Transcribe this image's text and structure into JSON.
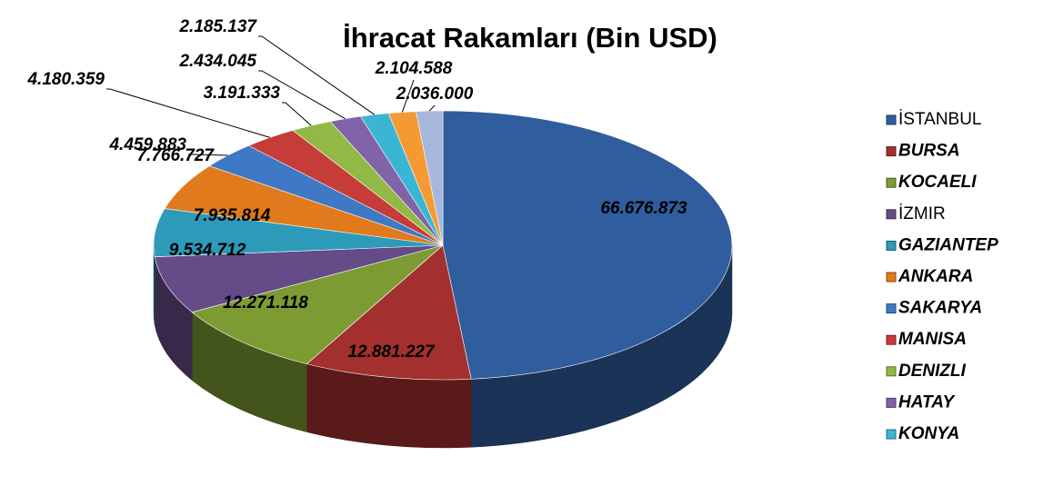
{
  "chart_data": {
    "type": "pie",
    "title": "İhracat Rakamları (Bin USD)",
    "categories": [
      "İSTANBUL",
      "BURSA",
      "KOCAELI",
      "İZMIR",
      "GAZIANTEP",
      "ANKARA",
      "SAKARYA",
      "MANISA",
      "DENIZLI",
      "HATAY",
      "KONYA",
      null,
      null
    ],
    "values": [
      66676873,
      12881227,
      12271118,
      9534712,
      7935814,
      7766727,
      4459883,
      4180359,
      3191333,
      2434045,
      2185137,
      2104588,
      2036000
    ],
    "value_labels": [
      "66.676.873",
      "12.881.227",
      "12.271.118",
      "9.534.712",
      "7.935.814",
      "7.766.727",
      "4.459.883",
      "4.180.359",
      "3.191.333",
      "2.434.045",
      "2.185.137",
      "2.104.588",
      "2.036.000"
    ],
    "colors": [
      "#2f5d9e",
      "#a3302e",
      "#7c9b33",
      "#654b87",
      "#2c9ab8",
      "#e07a1c",
      "#3f78c4",
      "#c63c38",
      "#92b945",
      "#8063a8",
      "#3ab6d3",
      "#f59a33",
      "#a6b7db"
    ]
  }
}
